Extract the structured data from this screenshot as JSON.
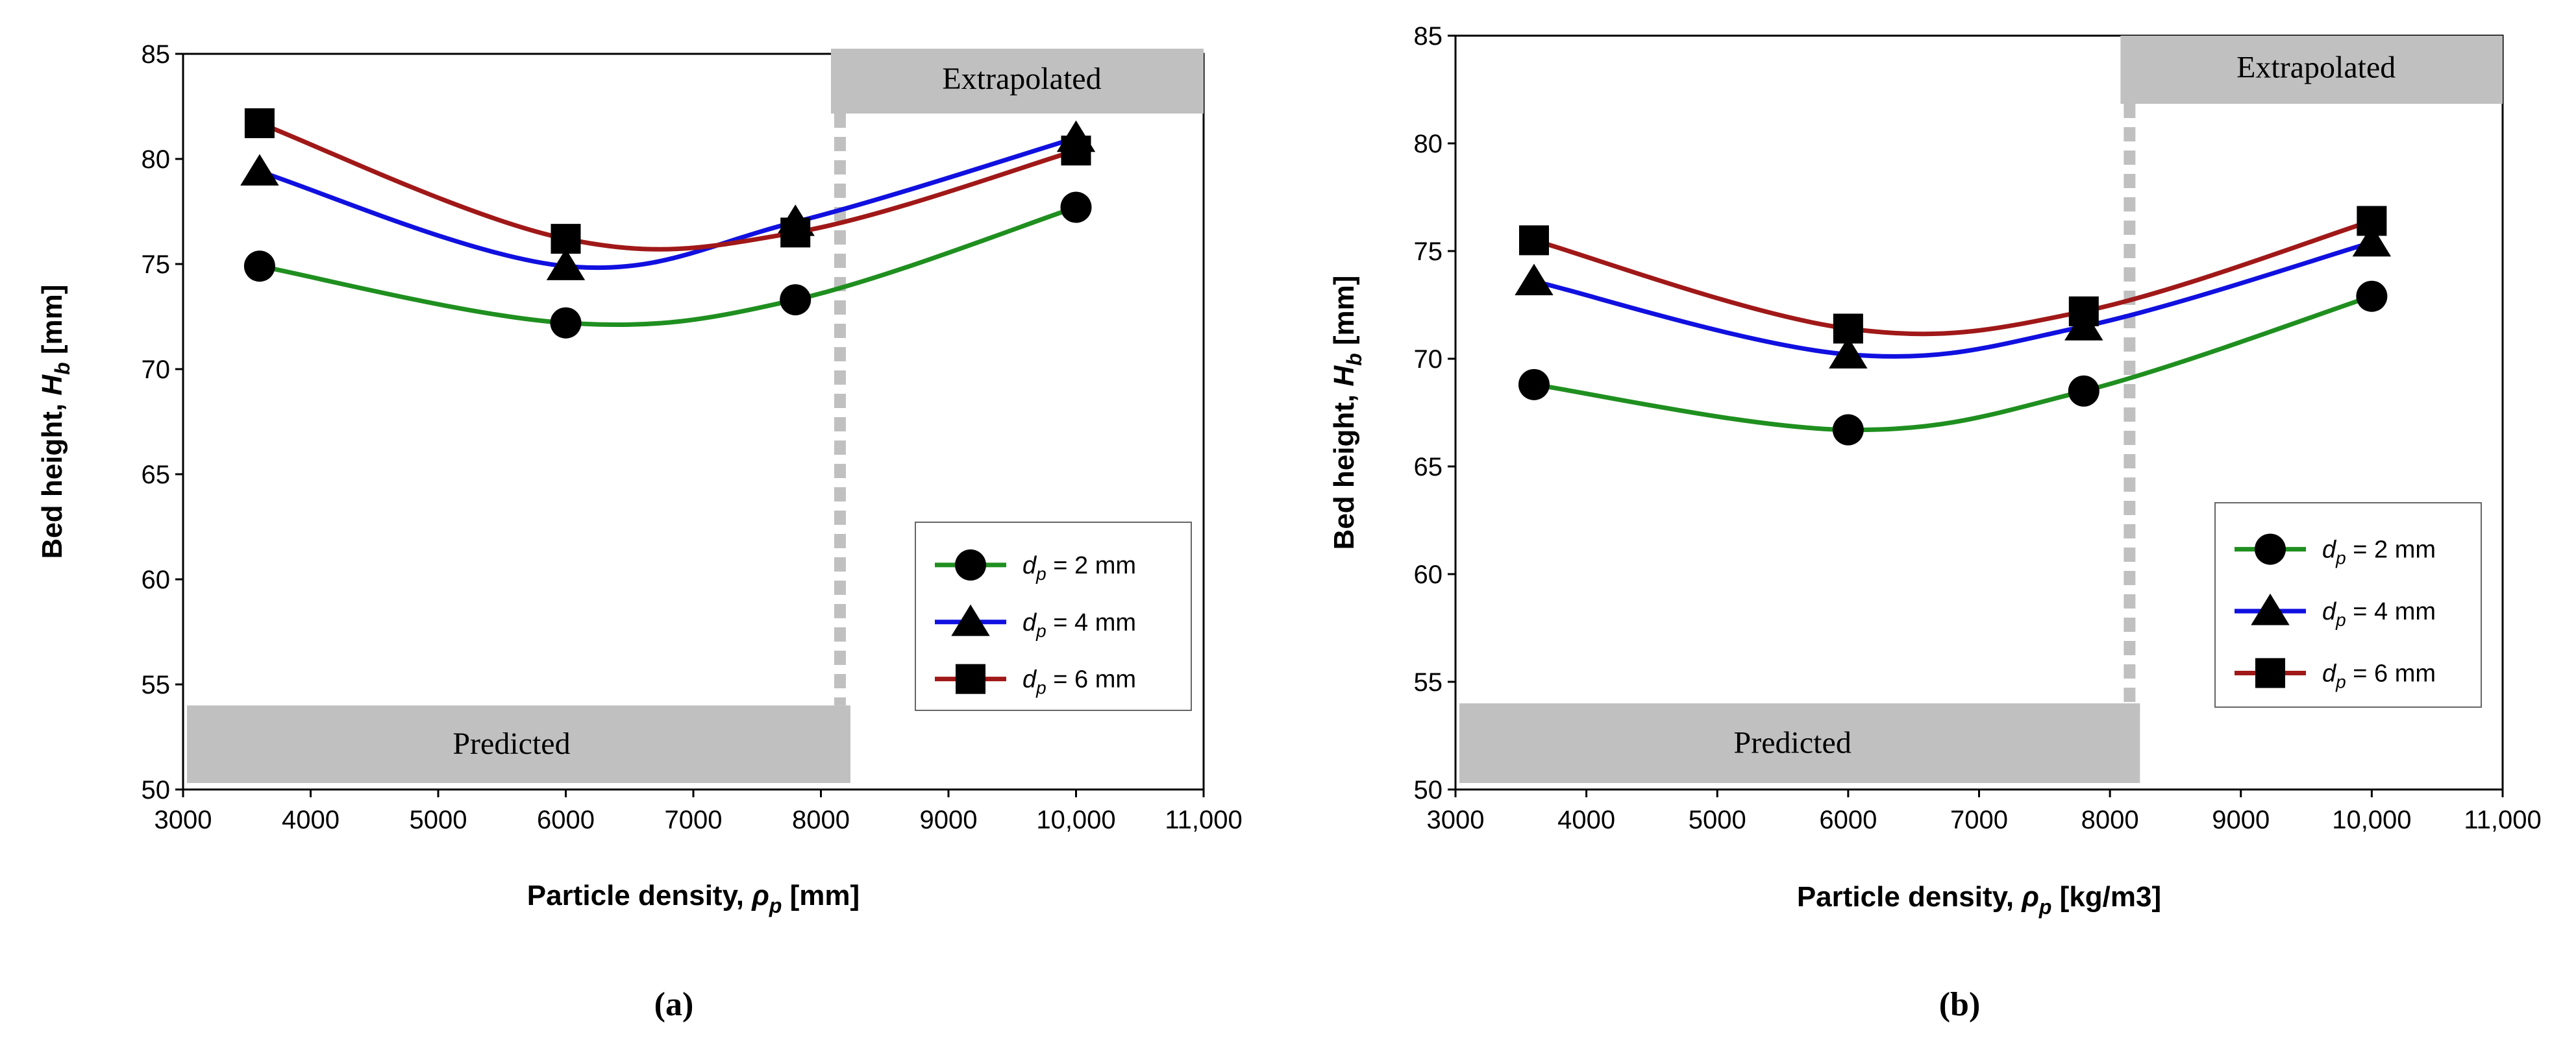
{
  "chart_data": [
    {
      "type": "line",
      "panel_label": "(a)",
      "xlabel_main": "Particle density, ",
      "xlabel_sym": "ρ",
      "xlabel_sub": "p",
      "xlabel_unit": " [mm]",
      "ylabel_main": "Bed height, ",
      "ylabel_sym": "H",
      "ylabel_sub": "b",
      "ylabel_unit": " [mm]",
      "xlim": [
        3000,
        11000
      ],
      "ylim": [
        50,
        85
      ],
      "xticks": [
        3000,
        4000,
        5000,
        6000,
        7000,
        8000,
        9000,
        10000,
        11000
      ],
      "xtick_labels": [
        "3000",
        "4000",
        "5000",
        "6000",
        "7000",
        "8000",
        "9000",
        "10,000",
        "11,000"
      ],
      "yticks": [
        50,
        55,
        60,
        65,
        70,
        75,
        80,
        85
      ],
      "ytick_labels": [
        "50",
        "55",
        "60",
        "65",
        "70",
        "75",
        "80",
        "85"
      ],
      "divider_x": 8150,
      "predicted_label": "Predicted",
      "extrapolated_label": "Extrapolated",
      "legend_position": "lower-right",
      "series": [
        {
          "name_sym": "d",
          "name_sub": "p",
          "name_rest": " = 2 mm",
          "marker": "circle",
          "color": "#1f8f1f",
          "x": [
            3600,
            6000,
            7800,
            10000
          ],
          "y": [
            74.9,
            72.2,
            73.3,
            77.7
          ]
        },
        {
          "name_sym": "d",
          "name_sub": "p",
          "name_rest": " = 4 mm",
          "marker": "triangle",
          "color": "#1010e0",
          "x": [
            3600,
            6000,
            7800,
            10000
          ],
          "y": [
            79.4,
            74.9,
            77.0,
            81.0
          ]
        },
        {
          "name_sym": "d",
          "name_sub": "p",
          "name_rest": " = 6 mm",
          "marker": "square",
          "color": "#a01818",
          "x": [
            3600,
            6000,
            7800,
            10000
          ],
          "y": [
            81.7,
            76.2,
            76.5,
            80.4
          ]
        }
      ]
    },
    {
      "type": "line",
      "panel_label": "(b)",
      "xlabel_main": "Particle density, ",
      "xlabel_sym": "ρ",
      "xlabel_sub": "p",
      "xlabel_unit": " [kg/m3]",
      "ylabel_main": "Bed height, ",
      "ylabel_sym": "H",
      "ylabel_sub": "b",
      "ylabel_unit": " [mm]",
      "xlim": [
        3000,
        11000
      ],
      "ylim": [
        50,
        85
      ],
      "xticks": [
        3000,
        4000,
        5000,
        6000,
        7000,
        8000,
        9000,
        10000,
        11000
      ],
      "xtick_labels": [
        "3000",
        "4000",
        "5000",
        "6000",
        "7000",
        "8000",
        "9000",
        "10,000",
        "11,000"
      ],
      "yticks": [
        50,
        55,
        60,
        65,
        70,
        75,
        80,
        85
      ],
      "ytick_labels": [
        "50",
        "55",
        "60",
        "65",
        "70",
        "75",
        "80",
        "85"
      ],
      "divider_x": 8150,
      "predicted_label": "Predicted",
      "extrapolated_label": "Extrapolated",
      "legend_position": "right",
      "series": [
        {
          "name_sym": "d",
          "name_sub": "p",
          "name_rest": " = 2 mm",
          "marker": "circle",
          "color": "#1f8f1f",
          "x": [
            3600,
            6000,
            7800,
            10000
          ],
          "y": [
            68.8,
            66.7,
            68.5,
            72.9
          ]
        },
        {
          "name_sym": "d",
          "name_sub": "p",
          "name_rest": " = 4 mm",
          "marker": "triangle",
          "color": "#1010e0",
          "x": [
            3600,
            6000,
            7800,
            10000
          ],
          "y": [
            73.6,
            70.2,
            71.5,
            75.4
          ]
        },
        {
          "name_sym": "d",
          "name_sub": "p",
          "name_rest": " = 6 mm",
          "marker": "square",
          "color": "#a01818",
          "x": [
            3600,
            6000,
            7800,
            10000
          ],
          "y": [
            75.5,
            71.4,
            72.2,
            76.4
          ]
        }
      ]
    }
  ]
}
